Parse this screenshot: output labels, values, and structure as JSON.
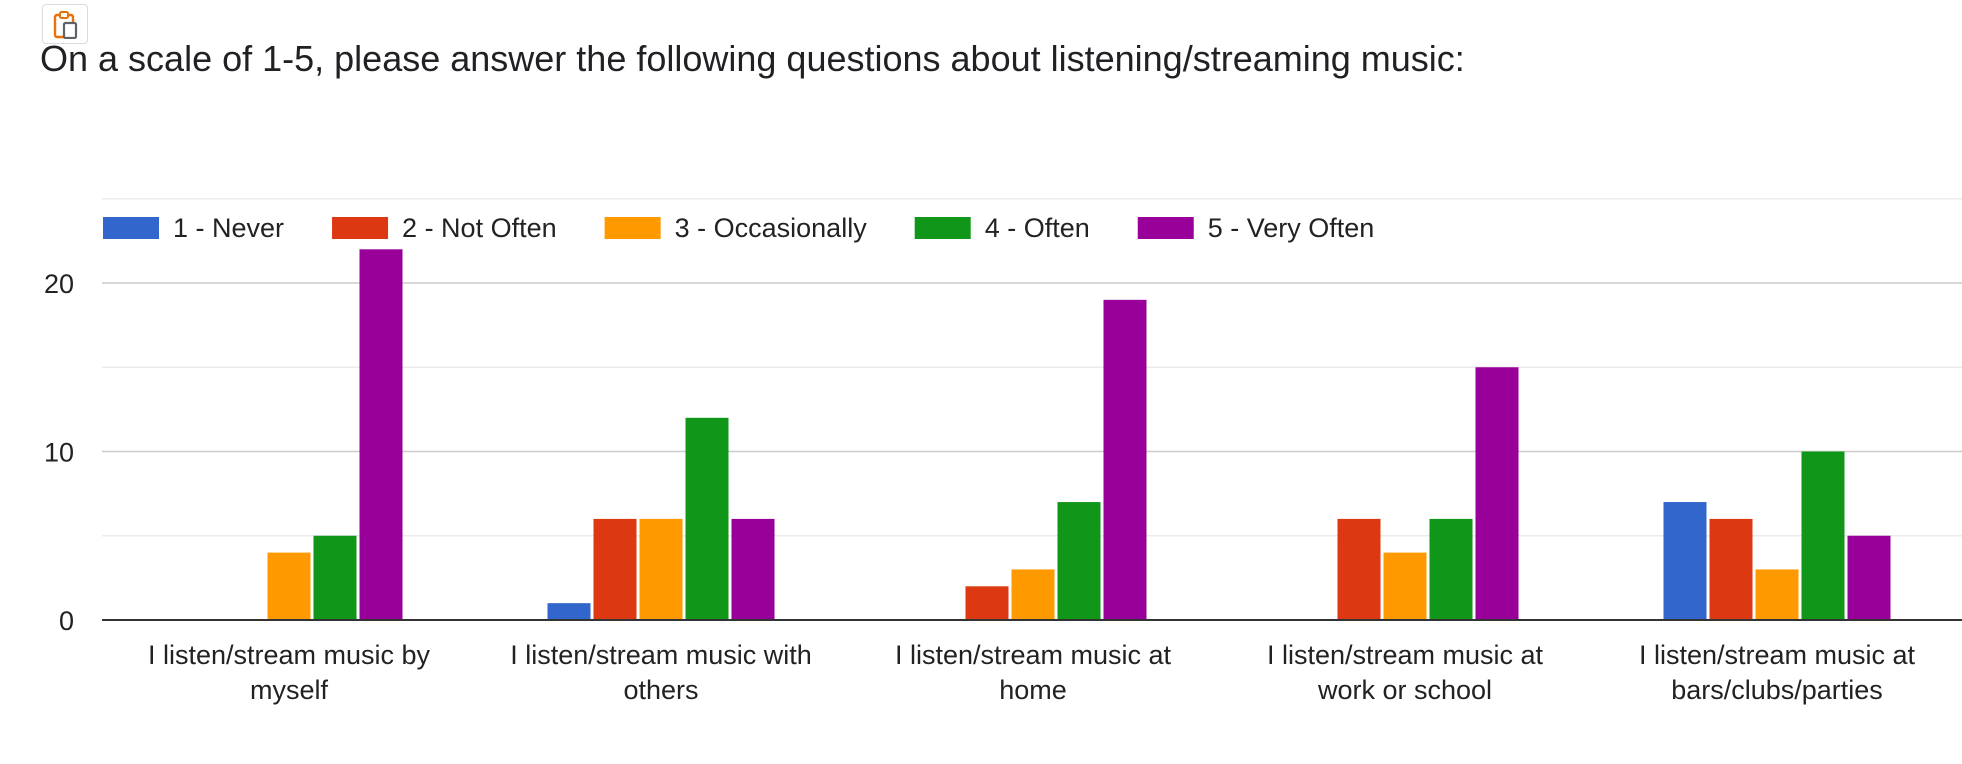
{
  "toolbar": {
    "copy_icon": "clipboard-copy-icon"
  },
  "question": {
    "title": "On a scale of 1-5, please answer the following questions about listening/streaming music:"
  },
  "chart_data": {
    "type": "bar",
    "categories": [
      "I listen/stream music by myself",
      "I listen/stream music with others",
      "I listen/stream music at home",
      "I listen/stream music at work or school",
      "I listen/stream music at bars/clubs/parties"
    ],
    "category_lines": [
      [
        "I listen/stream music by",
        "myself"
      ],
      [
        "I listen/stream music with",
        "others"
      ],
      [
        "I listen/stream music at",
        "home"
      ],
      [
        "I listen/stream music at",
        "work or school"
      ],
      [
        "I listen/stream music at",
        "bars/clubs/parties"
      ]
    ],
    "series": [
      {
        "name": "1 - Never",
        "color": "#3366cc",
        "values": [
          0,
          1,
          0,
          0,
          7
        ]
      },
      {
        "name": "2 - Not Often",
        "color": "#dc3912",
        "values": [
          0,
          6,
          2,
          6,
          6
        ]
      },
      {
        "name": "3 - Occasionally",
        "color": "#ff9900",
        "values": [
          4,
          6,
          3,
          4,
          3
        ]
      },
      {
        "name": "4 - Often",
        "color": "#109618",
        "values": [
          5,
          12,
          7,
          6,
          10
        ]
      },
      {
        "name": "5 - Very Often",
        "color": "#990099",
        "values": [
          22,
          6,
          19,
          15,
          5
        ]
      }
    ],
    "y_ticks": [
      "0",
      "10",
      "20"
    ],
    "ylim": [
      0,
      25
    ],
    "grid": true,
    "legend_position": "top-left"
  }
}
